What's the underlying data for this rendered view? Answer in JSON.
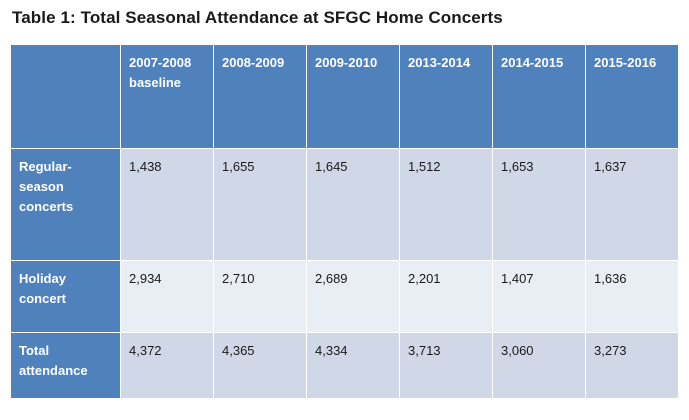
{
  "title": "Table 1: Total Seasonal Attendance at SFGC Home Concerts",
  "colors": {
    "header_bg": "#4f81bd",
    "row_dark": "#d0d8e8",
    "row_light": "#e9edf4",
    "header_text": "#ffffff"
  },
  "columns": [
    "",
    "2007-2008 baseline",
    "2008-2009",
    "2009-2010",
    "2013-2014",
    "2014-2015",
    "2015-2016"
  ],
  "rows": [
    {
      "label": "Regular-season concerts",
      "values": [
        "1,438",
        "1,655",
        "1,645",
        "1,512",
        "1,653",
        "1,637"
      ]
    },
    {
      "label": "Holiday concert",
      "values": [
        "2,934",
        "2,710",
        "2,689",
        "2,201",
        "1,407",
        "1,636"
      ]
    },
    {
      "label": "Total attendance",
      "values": [
        "4,372",
        "4,365",
        "4,334",
        "3,713",
        "3,060",
        "3,273"
      ]
    }
  ]
}
